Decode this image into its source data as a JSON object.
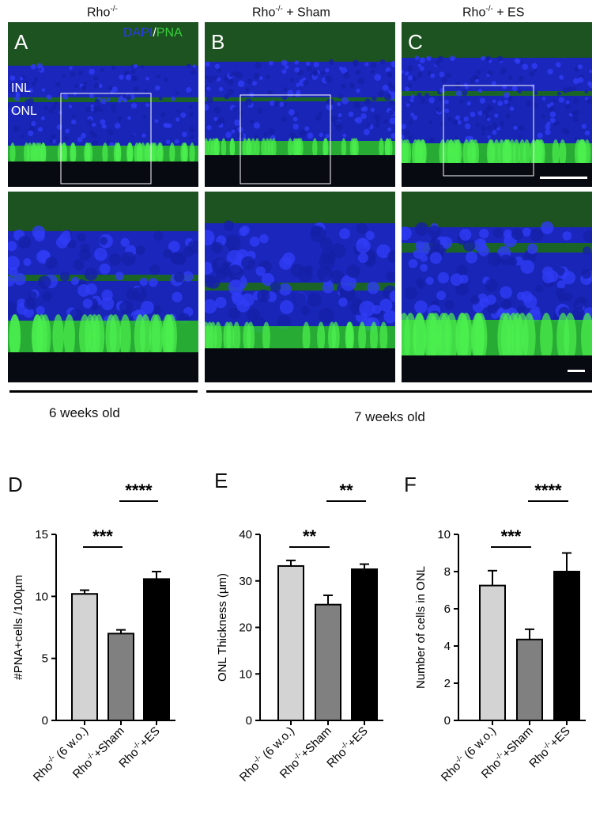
{
  "columns": {
    "a": {
      "base": "Rho",
      "sup": "-/-",
      "suffix": ""
    },
    "b": {
      "base": "Rho",
      "sup": "-/-",
      "suffix": " + Sham"
    },
    "c": {
      "base": "Rho",
      "sup": "-/-",
      "suffix": " + ES"
    }
  },
  "panels": {
    "a": "A",
    "b": "B",
    "c": "C"
  },
  "stain": {
    "dapi": "DAPI",
    "slash": "/",
    "pna": "PNA"
  },
  "layers": {
    "inl": "INL",
    "onl": "ONL"
  },
  "ages": {
    "group1": "6 weeks old",
    "group2": "7 weeks old"
  },
  "colors": {
    "dapi": "#1f2bd9",
    "pna": "#2ec83a",
    "background": "#0a0d18"
  },
  "chart_letters": {
    "d": "D",
    "e": "E",
    "f": "F"
  },
  "chart_data": [
    {
      "type": "bar",
      "panel": "D",
      "ylabel": "#PNA+cells /100µm",
      "ylim": [
        0,
        15
      ],
      "yticks": [
        0,
        5,
        10,
        15
      ],
      "categories": [
        {
          "base": "Rho",
          "sup": "-/-",
          "rest": " (6 w.o.)"
        },
        {
          "base": "Rho",
          "sup": "-/-",
          "rest": "+Sham"
        },
        {
          "base": "Rho",
          "sup": "-/-",
          "rest": "+ES"
        }
      ],
      "values": [
        10.2,
        7.0,
        11.4
      ],
      "errors": [
        0.3,
        0.3,
        0.6
      ],
      "bar_colors": [
        "#d3d3d3",
        "#808080",
        "#000000"
      ],
      "significance": [
        {
          "from": 0,
          "to": 1,
          "label": "***"
        },
        {
          "from": 1,
          "to": 2,
          "label": "****"
        }
      ]
    },
    {
      "type": "bar",
      "panel": "E",
      "ylabel": "ONL Thickness (µm)",
      "ylim": [
        0,
        40
      ],
      "yticks": [
        0,
        10,
        20,
        30,
        40
      ],
      "categories": [
        {
          "base": "Rho",
          "sup": "-/-",
          "rest": " (6 w.o.)"
        },
        {
          "base": "Rho",
          "sup": "-/-",
          "rest": "+Sham"
        },
        {
          "base": "Rho",
          "sup": "-/-",
          "rest": "+ES"
        }
      ],
      "values": [
        33.2,
        24.9,
        32.5
      ],
      "errors": [
        1.2,
        2.0,
        1.1
      ],
      "bar_colors": [
        "#d3d3d3",
        "#808080",
        "#000000"
      ],
      "significance": [
        {
          "from": 0,
          "to": 1,
          "label": "**"
        },
        {
          "from": 1,
          "to": 2,
          "label": "**"
        }
      ]
    },
    {
      "type": "bar",
      "panel": "F",
      "ylabel": "Number of cells in ONL",
      "ylim": [
        0,
        10
      ],
      "yticks": [
        0,
        2,
        4,
        6,
        8,
        10
      ],
      "categories": [
        {
          "base": "Rho",
          "sup": "-/-",
          "rest": " (6 w.o.)"
        },
        {
          "base": "Rho",
          "sup": "-/-",
          "rest": "+Sham"
        },
        {
          "base": "Rho",
          "sup": "-/-",
          "rest": "+ES"
        }
      ],
      "values": [
        7.25,
        4.35,
        8.0
      ],
      "errors": [
        0.8,
        0.55,
        1.0
      ],
      "bar_colors": [
        "#d3d3d3",
        "#808080",
        "#000000"
      ],
      "significance": [
        {
          "from": 0,
          "to": 1,
          "label": "***"
        },
        {
          "from": 1,
          "to": 2,
          "label": "****"
        }
      ]
    }
  ]
}
